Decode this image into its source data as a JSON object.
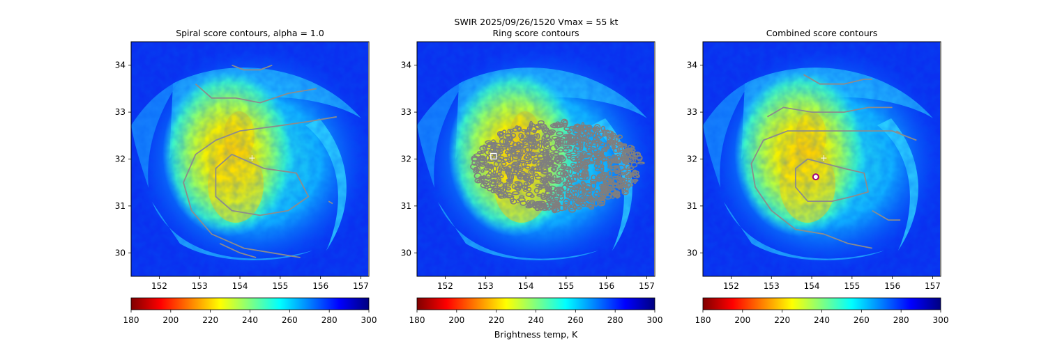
{
  "figure": {
    "suptitle_line": "SWIR  2025/09/26/1520    Vmax = 55 kt",
    "colorbar_label": "Brightness temp, K"
  },
  "colormap": {
    "name": "jet_r",
    "stops": [
      "#800000",
      "#ff0000",
      "#ff8000",
      "#ffff00",
      "#80ff80",
      "#00ffff",
      "#0080ff",
      "#0000ff",
      "#000080"
    ]
  },
  "chart_data": [
    {
      "type": "heatmap",
      "title": "Spiral score contours, alpha =  1.0",
      "xlim": [
        151.3,
        157.2
      ],
      "ylim": [
        29.5,
        34.5
      ],
      "x_ticks": [
        152,
        153,
        154,
        155,
        156,
        157
      ],
      "y_ticks": [
        30,
        31,
        32,
        33,
        34
      ],
      "colorbar": {
        "vmin": 180,
        "vmax": 300,
        "ticks": [
          180,
          200,
          220,
          240,
          260,
          280,
          300
        ]
      },
      "center_marker": {
        "x": 154.3,
        "y": 32.02,
        "symbol": "+",
        "color": "#ffffff"
      },
      "contours": [
        [
          [
            153.8,
            34.0
          ],
          [
            154.1,
            33.9
          ],
          [
            154.5,
            33.9
          ],
          [
            154.8,
            34.0
          ]
        ],
        [
          [
            152.9,
            33.6
          ],
          [
            153.3,
            33.3
          ],
          [
            153.9,
            33.3
          ],
          [
            154.5,
            33.2
          ],
          [
            155.2,
            33.4
          ],
          [
            155.9,
            33.5
          ]
        ],
        [
          [
            156.4,
            32.9
          ],
          [
            155.7,
            32.8
          ],
          [
            154.9,
            32.7
          ],
          [
            154.0,
            32.6
          ],
          [
            153.4,
            32.4
          ],
          [
            152.9,
            32.1
          ],
          [
            152.6,
            31.5
          ],
          [
            152.8,
            30.9
          ],
          [
            153.3,
            30.4
          ],
          [
            154.1,
            30.1
          ],
          [
            154.8,
            30.0
          ],
          [
            155.5,
            29.9
          ]
        ],
        [
          [
            154.6,
            31.8
          ],
          [
            155.4,
            31.7
          ],
          [
            155.7,
            31.2
          ],
          [
            155.2,
            30.9
          ],
          [
            154.5,
            30.8
          ],
          [
            153.8,
            30.9
          ],
          [
            153.4,
            31.2
          ],
          [
            153.4,
            31.8
          ],
          [
            153.8,
            32.1
          ],
          [
            154.6,
            31.8
          ]
        ],
        [
          [
            153.5,
            30.2
          ],
          [
            154.0,
            30.0
          ],
          [
            154.4,
            29.9
          ]
        ],
        [
          [
            156.2,
            31.1
          ],
          [
            156.3,
            31.05
          ]
        ]
      ]
    },
    {
      "type": "heatmap",
      "title": "Ring score contours",
      "xlim": [
        151.3,
        157.2
      ],
      "ylim": [
        29.5,
        34.5
      ],
      "x_ticks": [
        152,
        153,
        154,
        155,
        156,
        157
      ],
      "y_ticks": [
        30,
        31,
        32,
        33,
        34
      ],
      "colorbar": {
        "vmin": 180,
        "vmax": 300,
        "ticks": [
          180,
          200,
          220,
          240,
          260,
          280,
          300
        ]
      },
      "square_marker": {
        "x": 153.2,
        "y": 32.06,
        "symbol": "square",
        "color": "#ffffff"
      },
      "ring_region": {
        "x_range": [
          152.7,
          156.9
        ],
        "y_range": [
          30.9,
          32.8
        ]
      }
    },
    {
      "type": "heatmap",
      "title": "Combined score contours",
      "xlim": [
        151.3,
        157.2
      ],
      "ylim": [
        29.5,
        34.5
      ],
      "x_ticks": [
        152,
        153,
        154,
        155,
        156,
        157
      ],
      "y_ticks": [
        30,
        31,
        32,
        33,
        34
      ],
      "colorbar": {
        "vmin": 180,
        "vmax": 300,
        "ticks": [
          180,
          200,
          220,
          240,
          260,
          280,
          300
        ]
      },
      "center_marker": {
        "x": 154.3,
        "y": 32.02,
        "symbol": "+",
        "color": "#ffffff"
      },
      "circle_marker": {
        "x": 154.1,
        "y": 31.62,
        "symbol": "o",
        "color": "#a0007a"
      },
      "contours": [
        [
          [
            153.8,
            33.8
          ],
          [
            154.2,
            33.6
          ],
          [
            154.8,
            33.6
          ],
          [
            155.3,
            33.7
          ],
          [
            155.5,
            33.7
          ]
        ],
        [
          [
            152.9,
            32.9
          ],
          [
            153.3,
            33.1
          ],
          [
            154.0,
            33.0
          ],
          [
            154.8,
            33.0
          ],
          [
            155.4,
            33.1
          ],
          [
            156.0,
            33.1
          ]
        ],
        [
          [
            156.6,
            32.4
          ],
          [
            156.0,
            32.6
          ],
          [
            155.4,
            32.6
          ],
          [
            154.8,
            32.6
          ],
          [
            154.1,
            32.6
          ],
          [
            153.4,
            32.6
          ],
          [
            152.8,
            32.4
          ],
          [
            152.5,
            31.9
          ],
          [
            152.6,
            31.4
          ],
          [
            153.0,
            30.9
          ],
          [
            153.6,
            30.5
          ],
          [
            154.3,
            30.4
          ],
          [
            154.9,
            30.2
          ],
          [
            155.5,
            30.1
          ]
        ],
        [
          [
            154.8,
            31.8
          ],
          [
            155.3,
            31.7
          ],
          [
            155.4,
            31.3
          ],
          [
            155.0,
            31.2
          ],
          [
            154.5,
            31.1
          ],
          [
            153.9,
            31.1
          ],
          [
            153.6,
            31.4
          ],
          [
            153.6,
            31.8
          ],
          [
            153.9,
            32.0
          ],
          [
            154.8,
            31.8
          ]
        ],
        [
          [
            155.5,
            30.9
          ],
          [
            155.9,
            30.7
          ],
          [
            156.2,
            30.7
          ]
        ],
        [
          [
            156.1,
            32.6
          ],
          [
            156.2,
            32.55
          ]
        ]
      ]
    }
  ]
}
